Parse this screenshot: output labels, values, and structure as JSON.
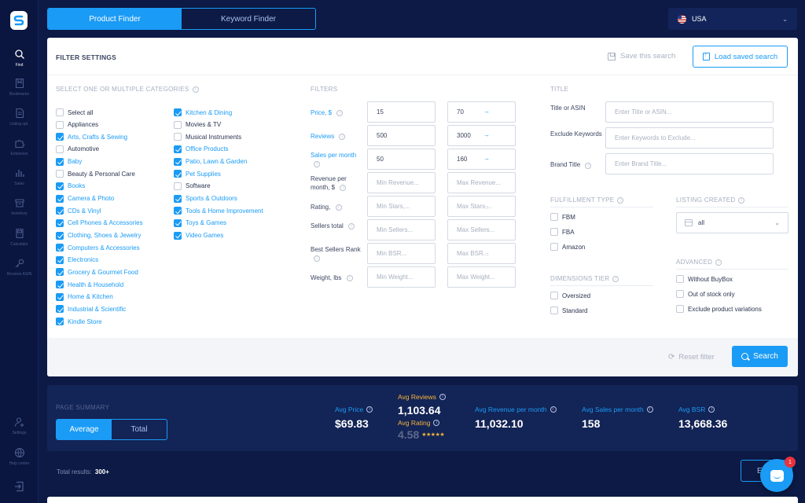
{
  "colors": {
    "accent": "#1a9bf5",
    "background": "#0c1a45",
    "gold": "#f5b43c"
  },
  "sidebar": {
    "items": [
      {
        "label": "Find",
        "icon": "search-icon",
        "active": true
      },
      {
        "label": "Bookmarks",
        "icon": "bookmark-icon"
      },
      {
        "label": "Listing opt.",
        "icon": "document-icon"
      },
      {
        "label": "Extension",
        "icon": "puzzle-icon"
      },
      {
        "label": "Sales",
        "icon": "bar-chart-icon"
      },
      {
        "label": "Inventory",
        "icon": "inventory-icon"
      },
      {
        "label": "Calculator",
        "icon": "calculator-icon"
      },
      {
        "label": "Reverse ASIN",
        "icon": "key-icon"
      },
      {
        "label": "Settings",
        "icon": "user-settings-icon"
      },
      {
        "label": "Help center",
        "icon": "globe-icon"
      }
    ],
    "logout_icon": "logout-icon"
  },
  "header": {
    "tabs": [
      "Product Finder",
      "Keyword Finder"
    ],
    "country": "USA"
  },
  "filter": {
    "title": "FILTER SETTINGS",
    "save_search": "Save this search",
    "load_search": "Load saved search",
    "categories_label": "SELECT ONE OR MULTIPLE CATEGORIES",
    "categories_col1": [
      {
        "label": "Select all",
        "checked": false
      },
      {
        "label": "Appliances",
        "checked": false
      },
      {
        "label": "Arts, Crafts & Sewing",
        "checked": true
      },
      {
        "label": "Automotive",
        "checked": false
      },
      {
        "label": "Baby",
        "checked": true
      },
      {
        "label": "Beauty & Personal Care",
        "checked": false
      },
      {
        "label": "Books",
        "checked": true
      },
      {
        "label": "Camera & Photo",
        "checked": true
      },
      {
        "label": "CDs & Vinyl",
        "checked": true
      },
      {
        "label": "Cell Phones & Accessories",
        "checked": true
      },
      {
        "label": "Clothing, Shoes & Jewelry",
        "checked": true
      },
      {
        "label": "Computers & Accessories",
        "checked": true
      },
      {
        "label": "Electronics",
        "checked": true
      },
      {
        "label": "Grocery & Gourmet Food",
        "checked": true
      },
      {
        "label": "Health & Household",
        "checked": true
      },
      {
        "label": "Home & Kitchen",
        "checked": true
      },
      {
        "label": "Industrial & Scientific",
        "checked": true
      },
      {
        "label": "Kindle Store",
        "checked": true
      }
    ],
    "categories_col2": [
      {
        "label": "Kitchen & Dining",
        "checked": true
      },
      {
        "label": "Movies & TV",
        "checked": false
      },
      {
        "label": "Musical Instruments",
        "checked": false
      },
      {
        "label": "Office Products",
        "checked": true
      },
      {
        "label": "Patio, Lawn & Garden",
        "checked": true
      },
      {
        "label": "Pet Supplies",
        "checked": true
      },
      {
        "label": "Software",
        "checked": false
      },
      {
        "label": "Sports & Outdoors",
        "checked": true
      },
      {
        "label": "Tools & Home Improvement",
        "checked": true
      },
      {
        "label": "Toys & Games",
        "checked": true
      },
      {
        "label": "Video Games",
        "checked": true
      }
    ],
    "filters_label": "FILTERS",
    "filters": [
      {
        "label": "Price, $",
        "min": "15",
        "max": "70",
        "min_placeholder": "",
        "max_placeholder": "",
        "active": true
      },
      {
        "label": "Reviews",
        "min": "500",
        "max": "3000",
        "min_placeholder": "",
        "max_placeholder": "",
        "active": true
      },
      {
        "label": "Sales per month",
        "min": "50",
        "max": "160",
        "min_placeholder": "",
        "max_placeholder": "",
        "active": true
      },
      {
        "label": "Revenue per month, $",
        "min": "",
        "max": "",
        "min_placeholder": "Min Revenue...",
        "max_placeholder": "Max Revenue...",
        "active": false
      },
      {
        "label": "Rating,",
        "min": "",
        "max": "",
        "min_placeholder": "Min Stars,...",
        "max_placeholder": "Max Stars,...",
        "active": false
      },
      {
        "label": "Sellers total",
        "min": "",
        "max": "",
        "min_placeholder": "Min Sellers...",
        "max_placeholder": "Max Sellers...",
        "active": false
      },
      {
        "label": "Best Sellers Rank",
        "min": "",
        "max": "",
        "min_placeholder": "Min BSR...",
        "max_placeholder": "Max BSR...",
        "active": false
      },
      {
        "label": "Weight, lbs",
        "min": "",
        "max": "",
        "min_placeholder": "Min Weight...",
        "max_placeholder": "Max Weight...",
        "active": false
      }
    ],
    "title_section": "TITLE",
    "title_fields": [
      {
        "label": "Title or ASIN",
        "placeholder": "Enter Title or ASIN..."
      },
      {
        "label": "Exclude Keywords",
        "placeholder": "Enter Keywords to Exclude..."
      },
      {
        "label": "Brand Title",
        "placeholder": "Enter Brand Title..."
      }
    ],
    "fulfillment_label": "FULFILLMENT TYPE",
    "fulfillment": [
      {
        "label": "FBM",
        "checked": false
      },
      {
        "label": "FBA",
        "checked": false
      },
      {
        "label": "Amazon",
        "checked": false
      }
    ],
    "listing_label": "LISTING CREATED",
    "listing_value": "all",
    "dimensions_label": "DIMENSIONS TIER",
    "dimensions": [
      {
        "label": "Oversized",
        "checked": false
      },
      {
        "label": "Standard",
        "checked": false
      }
    ],
    "advanced_label": "ADVANCED",
    "advanced": [
      {
        "label": "Without BuyBox",
        "checked": false
      },
      {
        "label": "Out of stock only",
        "checked": false
      },
      {
        "label": "Exclude product variations",
        "checked": false
      }
    ],
    "reset": "Reset filter",
    "search": "Search"
  },
  "summary": {
    "title": "PAGE SUMMARY",
    "toggle": [
      "Average",
      "Total"
    ],
    "avg_price_label": "Avg Price",
    "avg_price": "$69.83",
    "avg_reviews_label": "Avg Reviews",
    "avg_reviews": "1,103.64",
    "avg_rating_label": "Avg Rating",
    "avg_rating": "4.58",
    "avg_revenue_label": "Avg Revenue per month",
    "avg_revenue": "11,032.10",
    "avg_sales_label": "Avg Sales per month",
    "avg_sales": "158",
    "avg_bsr_label": "Avg BSR",
    "avg_bsr": "13,668.36"
  },
  "results": {
    "label": "Total results:",
    "value": "300+"
  },
  "export_label": "E",
  "chat_badge": "1"
}
